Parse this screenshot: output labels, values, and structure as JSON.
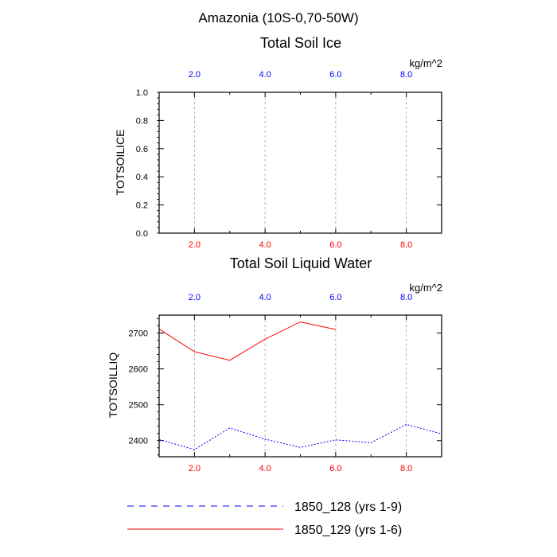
{
  "header": {
    "region_title": "Amazonia (10S-0,70-50W)"
  },
  "colors": {
    "case1": "#0000ff",
    "case2": "#ff0000",
    "axis": "#000000",
    "grid": "#a0a0a0"
  },
  "chart_data": [
    {
      "type": "line",
      "title": "Total Soil Ice",
      "ylabel": "TOTSOILICE",
      "units": "kg/m^2",
      "xlim": [
        1,
        9
      ],
      "ylim": [
        0,
        1
      ],
      "x_ticks_bottom": [
        "2.0",
        "4.0",
        "6.0",
        "8.0"
      ],
      "x_ticks_top": [
        "2.0",
        "4.0",
        "6.0",
        "8.0"
      ],
      "y_ticks": [
        "0.0",
        "0.2",
        "0.4",
        "0.6",
        "0.8",
        "1.0"
      ],
      "grid": "vertical dashed at major x ticks",
      "series": []
    },
    {
      "type": "line",
      "title": "Total Soil Liquid Water",
      "ylabel": "TOTSOILLIQ",
      "units": "kg/m^2",
      "xlim": [
        1,
        9
      ],
      "ylim": [
        2355,
        2750
      ],
      "x_ticks_bottom": [
        "2.0",
        "4.0",
        "6.0",
        "8.0"
      ],
      "x_ticks_top": [
        "2.0",
        "4.0",
        "6.0",
        "8.0"
      ],
      "y_ticks": [
        "2400",
        "2500",
        "2600",
        "2700"
      ],
      "grid": "vertical dashed at major x ticks",
      "series": [
        {
          "name": "1850_128 (yrs 1-9)",
          "color": "#0000ff",
          "style": "dashed",
          "x": [
            1,
            2,
            3,
            4,
            5,
            6,
            7,
            8,
            9
          ],
          "values": [
            2403,
            2375,
            2435,
            2404,
            2381,
            2402,
            2394,
            2445,
            2419
          ]
        },
        {
          "name": "1850_129 (yrs 1-6)",
          "color": "#ff0000",
          "style": "solid",
          "x": [
            1,
            2,
            3,
            4,
            5,
            6
          ],
          "values": [
            2711,
            2648,
            2624,
            2683,
            2731,
            2710
          ]
        }
      ]
    }
  ],
  "legend": {
    "entries": [
      {
        "label": "1850_128 (yrs 1-9)",
        "color": "#0000ff",
        "style": "dashed"
      },
      {
        "label": "1850_129 (yrs 1-6)",
        "color": "#ff0000",
        "style": "solid"
      }
    ]
  }
}
